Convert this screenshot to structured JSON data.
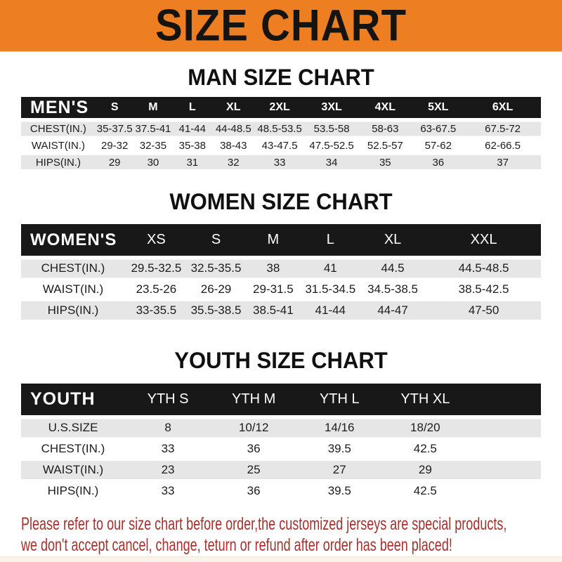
{
  "banner": {
    "title": "SIZE CHART"
  },
  "colors": {
    "accent_orange": "#EE7E22",
    "header_black": "#181818",
    "row_gray": "#E6E6E6",
    "note_red": "#A5302C"
  },
  "sections": [
    {
      "heading": "MAN SIZE CHART",
      "table": {
        "corner_label": "MEN'S",
        "columns": [
          "S",
          "M",
          "L",
          "XL",
          "2XL",
          "3XL",
          "4XL",
          "5XL",
          "6XL"
        ],
        "rows": [
          {
            "label": "CHEST(IN.)",
            "values": [
              "35-37.5",
              "37.5-41",
              "41-44",
              "44-48.5",
              "48.5-53.5",
              "53.5-58",
              "58-63",
              "63-67.5",
              "67.5-72"
            ]
          },
          {
            "label": "WAIST(IN.)",
            "values": [
              "29-32",
              "32-35",
              "35-38",
              "38-43",
              "43-47.5",
              "47.5-52.5",
              "52.5-57",
              "57-62",
              "62-66.5"
            ]
          },
          {
            "label": "HIPS(IN.)",
            "values": [
              "29",
              "30",
              "31",
              "32",
              "33",
              "34",
              "35",
              "36",
              "37"
            ]
          }
        ]
      }
    },
    {
      "heading": "WOMEN SIZE CHART",
      "table": {
        "corner_label": "WOMEN'S",
        "columns": [
          "XS",
          "S",
          "M",
          "L",
          "XL",
          "XXL"
        ],
        "rows": [
          {
            "label": "CHEST(IN.)",
            "values": [
              "29.5-32.5",
              "32.5-35.5",
              "38",
              "41",
              "44.5",
              "44.5-48.5"
            ]
          },
          {
            "label": "WAIST(IN.)",
            "values": [
              "23.5-26",
              "26-29",
              "29-31.5",
              "31.5-34.5",
              "34.5-38.5",
              "38.5-42.5"
            ]
          },
          {
            "label": "HIPS(IN.)",
            "values": [
              "33-35.5",
              "35.5-38.5",
              "38.5-41",
              "41-44",
              "44-47",
              "47-50"
            ]
          }
        ]
      }
    },
    {
      "heading": "YOUTH SIZE CHART",
      "table": {
        "corner_label": "YOUTH",
        "columns": [
          "YTH S",
          "YTH M",
          "YTH L",
          "YTH XL"
        ],
        "rows": [
          {
            "label": "U.S.SIZE",
            "values": [
              "8",
              "10/12",
              "14/16",
              "18/20"
            ]
          },
          {
            "label": "CHEST(IN.)",
            "values": [
              "33",
              "36",
              "39.5",
              "42.5"
            ]
          },
          {
            "label": "WAIST(IN.)",
            "values": [
              "23",
              "25",
              "27",
              "29"
            ]
          },
          {
            "label": "HIPS(IN.)",
            "values": [
              "33",
              "36",
              "39.5",
              "42.5"
            ]
          }
        ]
      }
    }
  ],
  "footer": {
    "line1": "Please refer to our size chart before order,the customized jerseys are special products,",
    "line2": "we don't accept cancel, change, teturn or refund after order has been placed!"
  }
}
